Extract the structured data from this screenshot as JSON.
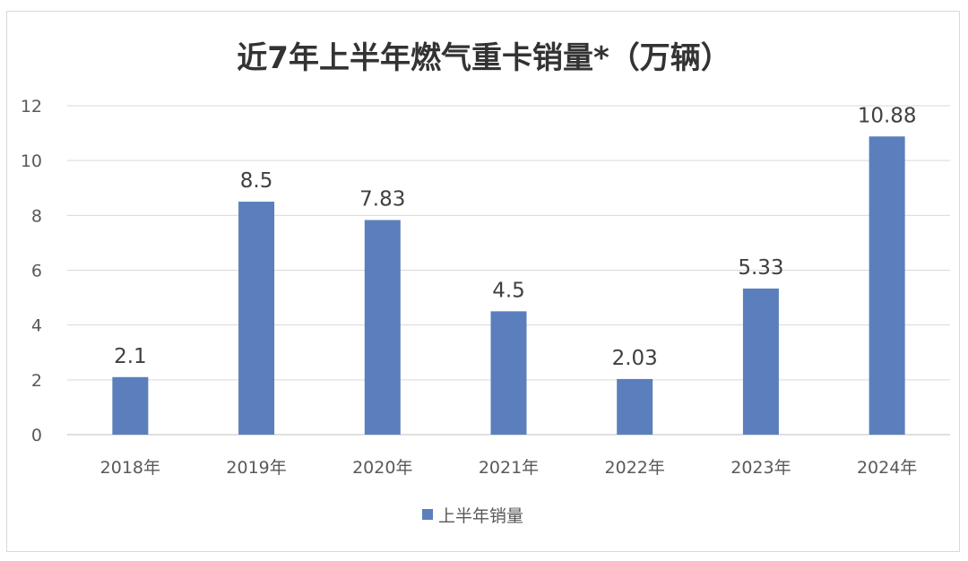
{
  "chart_data": {
    "type": "bar",
    "title": "近7年上半年燃气重卡销量*（万辆）",
    "categories": [
      "2018年",
      "2019年",
      "2020年",
      "2021年",
      "2022年",
      "2023年",
      "2024年"
    ],
    "series": [
      {
        "name": "上半年销量",
        "values": [
          2.1,
          8.5,
          7.83,
          4.5,
          2.03,
          5.33,
          10.88
        ],
        "color": "#5b7fbc"
      }
    ],
    "value_labels": [
      "2.1",
      "8.5",
      "7.83",
      "4.5",
      "2.03",
      "5.33",
      "10.88"
    ],
    "yticks": [
      0,
      2,
      4,
      6,
      8,
      10,
      12
    ],
    "ylim": [
      0,
      12
    ],
    "xlabel": "",
    "ylabel": "",
    "grid": true,
    "legend": "bottom"
  }
}
